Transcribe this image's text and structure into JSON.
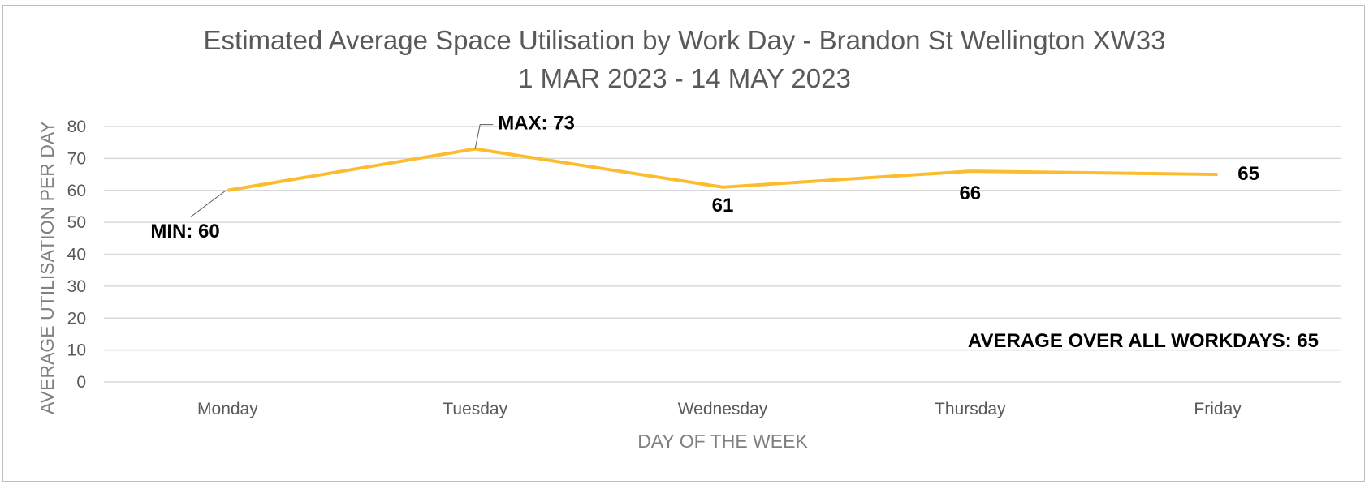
{
  "chart_data": {
    "type": "line",
    "title": "Estimated Average Space Utilisation by Work Day - Brandon St Wellington XW33",
    "subtitle": "1 MAR 2023 - 14 MAY 2023",
    "xlabel": "DAY OF THE WEEK",
    "ylabel": "AVERAGE UTILISATION PER DAY",
    "categories": [
      "Monday",
      "Tuesday",
      "Wednesday",
      "Thursday",
      "Friday"
    ],
    "values": [
      60,
      73,
      61,
      66,
      65
    ],
    "ylim": [
      0,
      80
    ],
    "yticks": [
      0,
      10,
      20,
      30,
      40,
      50,
      60,
      70,
      80
    ],
    "grid": true,
    "line_color": "#FBBC2E",
    "data_labels": [
      "MIN: 60",
      "MAX: 73",
      "61",
      "66",
      "65"
    ],
    "annotation": "AVERAGE OVER ALL WORKDAYS: 65"
  }
}
